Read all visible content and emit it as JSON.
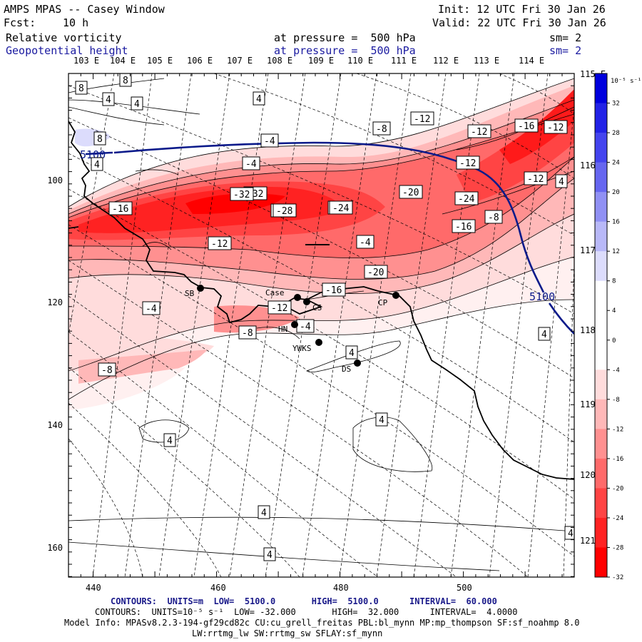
{
  "header": {
    "title": "AMPS MPAS -- Casey Window",
    "init": "Init: 12 UTC Fri 30 Jan 26",
    "fcst_label": "Fcst:",
    "fcst_value": "10 h",
    "valid": "Valid: 22 UTC Fri 30 Jan 26",
    "field1": "Relative vorticity",
    "field1_level": "at pressure =  500 hPa",
    "field1_sm": "sm= 2",
    "field2": "Geopotential height",
    "field2_level": "at pressure =  500 hPa",
    "field2_sm": "sm= 2"
  },
  "lon_labels_top": [
    "103 E",
    "104 E",
    "105 E",
    "106 E",
    "107 E",
    "108 E",
    "109 E",
    "110 E",
    "111 E",
    "112 E",
    "113 E",
    "114 E"
  ],
  "lon_labels_right": [
    "115 E",
    "116 E",
    "117 E",
    "118 E",
    "119 E",
    "120 E",
    "121 E"
  ],
  "axis_x_ticks": [
    "440",
    "460",
    "480",
    "500"
  ],
  "axis_y_ticks": [
    "100",
    "120",
    "140",
    "160"
  ],
  "colorbar": {
    "units": "10⁻⁵ s⁻¹",
    "levels": [
      "32",
      "28",
      "24",
      "20",
      "16",
      "12",
      "8",
      "4",
      "0",
      "-4",
      "-8",
      "-12",
      "-16",
      "-20",
      "-24",
      "-28",
      "-32"
    ],
    "colors": [
      "#0000dd",
      "#2222e6",
      "#4444ee",
      "#6666f0",
      "#9090f4",
      "#b8b8f8",
      "#dcdcfc",
      "#ffffff",
      "#ffffff",
      "#ffffff",
      "#ffdcdc",
      "#ffb8b8",
      "#ff9090",
      "#ff6a6a",
      "#ff4444",
      "#ff2222",
      "#ff0000"
    ]
  },
  "stations": [
    {
      "name": "SB"
    },
    {
      "name": "Case"
    },
    {
      "name": "CS"
    },
    {
      "name": "HN"
    },
    {
      "name": "YWKS"
    },
    {
      "name": "DS"
    },
    {
      "name": "CP"
    }
  ],
  "height_label": "5100",
  "contour_labels": [
    "8",
    "8",
    "4",
    "4",
    "4",
    "8",
    "4",
    "-4",
    "-4",
    "-8",
    "-12",
    "-12",
    "-16",
    "-12",
    "-32",
    "-16",
    "-12",
    "-4",
    "-32",
    "-28",
    "-24",
    "-20",
    "-24",
    "-16",
    "-8",
    "4",
    "-12",
    "-16",
    "-12",
    "-20",
    "-16",
    "-4",
    "-12",
    "-8",
    "-4",
    "-8",
    "4",
    "4",
    "4",
    "4",
    "4",
    "4",
    "4",
    "-12"
  ],
  "footer": {
    "line1": "CONTOURS:  UNITS=m  LOW=  5100.0       HIGH=  5100.0      INTERVAL=  60.000",
    "line2": "CONTOURS:  UNITS=10⁻⁵ s⁻¹  LOW= -32.000       HIGH=  32.000      INTERVAL=  4.0000",
    "line3": "Model Info: MPASv8.2.3-194-gf29cd82c CU:cu_grell_freitas PBL:bl_mynn MP:mp_thompson SF:sf_noahmp 8.0",
    "line4": "LW:rrtmg_lw SW:rrtmg_sw SFLAY:sf_mynn"
  }
}
